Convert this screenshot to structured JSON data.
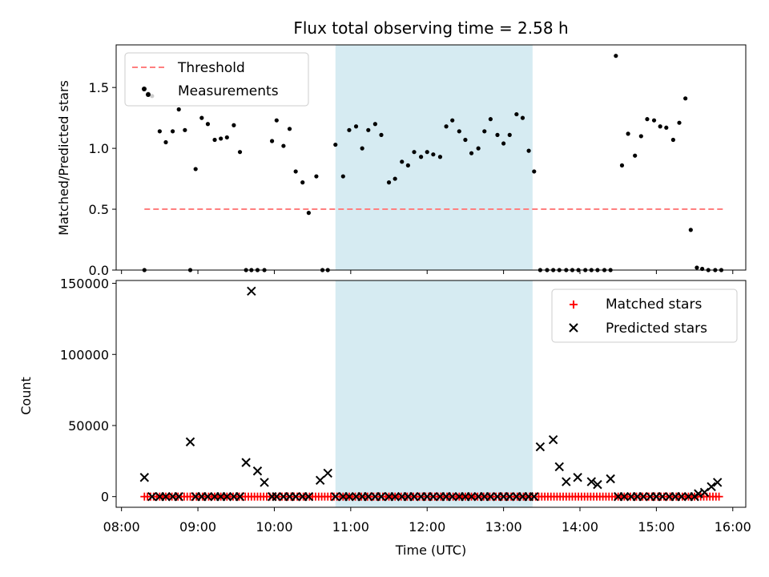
{
  "chart_data": [
    {
      "type": "scatter",
      "title": "Flux total observing time = 2.58 h",
      "xlabel": "",
      "ylabel": "Matched/Predicted stars",
      "x_units": "hours (UTC)",
      "xlim": [
        7.93,
        16.17
      ],
      "ylim": [
        0,
        1.85
      ],
      "yticks": [
        0.0,
        0.5,
        1.0,
        1.5
      ],
      "ytick_labels": [
        "0.0",
        "0.5",
        "1.0",
        "1.5"
      ],
      "shaded_interval": [
        10.8,
        13.38
      ],
      "legend": {
        "position": "top-left",
        "entries": [
          "Threshold",
          "Measurements"
        ]
      },
      "series": [
        {
          "name": "Threshold",
          "style": "dashed-line",
          "color": "#ff7f7f",
          "x": [
            8.3,
            15.9
          ],
          "y": [
            0.5,
            0.5
          ]
        },
        {
          "name": "Measurements",
          "style": "dot",
          "color": "#000000",
          "points": [
            [
              8.3,
              0.0
            ],
            [
              8.35,
              1.45
            ],
            [
              8.4,
              1.43
            ],
            [
              8.5,
              1.14
            ],
            [
              8.58,
              1.05
            ],
            [
              8.67,
              1.14
            ],
            [
              8.75,
              1.32
            ],
            [
              8.83,
              1.15
            ],
            [
              8.9,
              0.0
            ],
            [
              8.97,
              0.83
            ],
            [
              9.05,
              1.25
            ],
            [
              9.13,
              1.2
            ],
            [
              9.22,
              1.07
            ],
            [
              9.3,
              1.08
            ],
            [
              9.38,
              1.09
            ],
            [
              9.47,
              1.19
            ],
            [
              9.55,
              0.97
            ],
            [
              9.63,
              0.0
            ],
            [
              9.7,
              0.0
            ],
            [
              9.78,
              0.0
            ],
            [
              9.87,
              0.0
            ],
            [
              9.97,
              1.06
            ],
            [
              10.03,
              1.23
            ],
            [
              10.12,
              1.02
            ],
            [
              10.2,
              1.16
            ],
            [
              10.28,
              0.81
            ],
            [
              10.37,
              0.72
            ],
            [
              10.45,
              0.47
            ],
            [
              10.55,
              0.77
            ],
            [
              10.63,
              0.0
            ],
            [
              10.7,
              0.0
            ],
            [
              10.8,
              1.03
            ],
            [
              10.9,
              0.77
            ],
            [
              10.98,
              1.15
            ],
            [
              11.07,
              1.18
            ],
            [
              11.15,
              1.0
            ],
            [
              11.23,
              1.15
            ],
            [
              11.32,
              1.2
            ],
            [
              11.4,
              1.11
            ],
            [
              11.5,
              0.72
            ],
            [
              11.58,
              0.75
            ],
            [
              11.67,
              0.89
            ],
            [
              11.75,
              0.86
            ],
            [
              11.83,
              0.97
            ],
            [
              11.92,
              0.93
            ],
            [
              12.0,
              0.97
            ],
            [
              12.08,
              0.95
            ],
            [
              12.17,
              0.93
            ],
            [
              12.25,
              1.18
            ],
            [
              12.33,
              1.23
            ],
            [
              12.42,
              1.14
            ],
            [
              12.5,
              1.07
            ],
            [
              12.58,
              0.96
            ],
            [
              12.67,
              1.0
            ],
            [
              12.75,
              1.14
            ],
            [
              12.83,
              1.24
            ],
            [
              12.92,
              1.11
            ],
            [
              13.0,
              1.04
            ],
            [
              13.08,
              1.11
            ],
            [
              13.17,
              1.28
            ],
            [
              13.25,
              1.25
            ],
            [
              13.33,
              0.98
            ],
            [
              13.4,
              0.81
            ],
            [
              13.48,
              0.0
            ],
            [
              13.57,
              0.0
            ],
            [
              13.65,
              0.0
            ],
            [
              13.73,
              0.0
            ],
            [
              13.82,
              0.0
            ],
            [
              13.9,
              0.0
            ],
            [
              13.98,
              0.0
            ],
            [
              14.07,
              0.0
            ],
            [
              14.15,
              0.0
            ],
            [
              14.23,
              0.0
            ],
            [
              14.32,
              0.0
            ],
            [
              14.4,
              0.0
            ],
            [
              14.47,
              1.76
            ],
            [
              14.55,
              0.86
            ],
            [
              14.63,
              1.12
            ],
            [
              14.72,
              0.94
            ],
            [
              14.8,
              1.1
            ],
            [
              14.88,
              1.24
            ],
            [
              14.97,
              1.23
            ],
            [
              15.05,
              1.18
            ],
            [
              15.13,
              1.17
            ],
            [
              15.22,
              1.07
            ],
            [
              15.3,
              1.21
            ],
            [
              15.38,
              1.41
            ],
            [
              15.45,
              0.33
            ],
            [
              15.53,
              0.02
            ],
            [
              15.6,
              0.01
            ],
            [
              15.68,
              0.0
            ],
            [
              15.77,
              0.0
            ],
            [
              15.85,
              0.0
            ]
          ]
        }
      ]
    },
    {
      "type": "scatter",
      "title": "",
      "xlabel": "Time (UTC)",
      "ylabel": "Count",
      "x_units": "hours (UTC)",
      "xlim": [
        7.93,
        16.17
      ],
      "ylim": [
        -7500,
        152000
      ],
      "yticks": [
        0,
        50000,
        100000,
        150000
      ],
      "ytick_labels": [
        "0",
        "50000",
        "100000",
        "150000"
      ],
      "xticks": [
        8,
        9,
        10,
        11,
        12,
        13,
        14,
        15,
        16
      ],
      "xtick_labels": [
        "08:00",
        "09:00",
        "10:00",
        "11:00",
        "12:00",
        "13:00",
        "14:00",
        "15:00",
        "16:00"
      ],
      "shaded_interval": [
        10.8,
        13.38
      ],
      "legend": {
        "position": "top-right",
        "entries": [
          "Matched stars",
          "Predicted stars"
        ]
      },
      "series": [
        {
          "name": "Matched stars",
          "marker": "plus",
          "color": "#ff0000",
          "x_range": [
            8.3,
            15.85
          ],
          "x_step": 0.04,
          "value": 0
        },
        {
          "name": "Predicted stars",
          "marker": "x",
          "color": "#000000",
          "points": [
            [
              8.3,
              13500
            ],
            [
              8.4,
              0
            ],
            [
              8.5,
              0
            ],
            [
              8.58,
              0
            ],
            [
              8.67,
              0
            ],
            [
              8.75,
              0
            ],
            [
              8.9,
              38500
            ],
            [
              8.97,
              0
            ],
            [
              9.05,
              0
            ],
            [
              9.13,
              0
            ],
            [
              9.22,
              0
            ],
            [
              9.3,
              0
            ],
            [
              9.38,
              0
            ],
            [
              9.47,
              0
            ],
            [
              9.55,
              0
            ],
            [
              9.63,
              24000
            ],
            [
              9.7,
              144500
            ],
            [
              9.78,
              18000
            ],
            [
              9.87,
              10000
            ],
            [
              9.97,
              0
            ],
            [
              10.03,
              0
            ],
            [
              10.12,
              0
            ],
            [
              10.2,
              0
            ],
            [
              10.28,
              0
            ],
            [
              10.37,
              0
            ],
            [
              10.45,
              0
            ],
            [
              10.6,
              11500
            ],
            [
              10.7,
              16500
            ],
            [
              10.8,
              0
            ],
            [
              10.9,
              0
            ],
            [
              10.98,
              0
            ],
            [
              11.07,
              0
            ],
            [
              11.15,
              0
            ],
            [
              11.23,
              0
            ],
            [
              11.32,
              0
            ],
            [
              11.4,
              0
            ],
            [
              11.5,
              0
            ],
            [
              11.58,
              0
            ],
            [
              11.67,
              0
            ],
            [
              11.75,
              0
            ],
            [
              11.83,
              0
            ],
            [
              11.92,
              0
            ],
            [
              12.0,
              0
            ],
            [
              12.08,
              0
            ],
            [
              12.17,
              0
            ],
            [
              12.25,
              0
            ],
            [
              12.33,
              0
            ],
            [
              12.42,
              0
            ],
            [
              12.5,
              0
            ],
            [
              12.58,
              0
            ],
            [
              12.67,
              0
            ],
            [
              12.75,
              0
            ],
            [
              12.83,
              0
            ],
            [
              12.92,
              0
            ],
            [
              13.0,
              0
            ],
            [
              13.08,
              0
            ],
            [
              13.17,
              0
            ],
            [
              13.25,
              0
            ],
            [
              13.33,
              0
            ],
            [
              13.4,
              0
            ],
            [
              13.48,
              35000
            ],
            [
              13.65,
              40000
            ],
            [
              13.73,
              21000
            ],
            [
              13.82,
              10500
            ],
            [
              13.97,
              13500
            ],
            [
              14.15,
              10500
            ],
            [
              14.23,
              8500
            ],
            [
              14.4,
              12500
            ],
            [
              14.5,
              0
            ],
            [
              14.58,
              0
            ],
            [
              14.67,
              0
            ],
            [
              14.75,
              0
            ],
            [
              14.83,
              0
            ],
            [
              14.92,
              0
            ],
            [
              15.0,
              0
            ],
            [
              15.08,
              0
            ],
            [
              15.17,
              0
            ],
            [
              15.25,
              0
            ],
            [
              15.33,
              0
            ],
            [
              15.42,
              0
            ],
            [
              15.5,
              0
            ],
            [
              15.55,
              2000
            ],
            [
              15.63,
              3000
            ],
            [
              15.72,
              7000
            ],
            [
              15.8,
              10000
            ]
          ]
        }
      ]
    }
  ]
}
